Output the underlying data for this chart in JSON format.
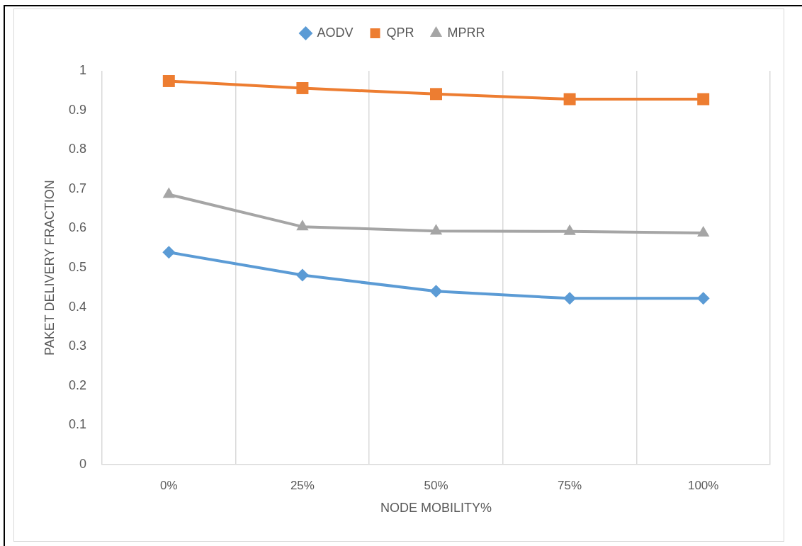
{
  "chart_data": {
    "type": "line",
    "xlabel": "NODE MOBILITY%",
    "ylabel": "PAKET DELIVERY FRACTION",
    "categories": [
      "0%",
      "25%",
      "50%",
      "75%",
      "100%"
    ],
    "series": [
      {
        "name": "AODV",
        "color": "#5b9bd5",
        "marker": "diamond",
        "values": [
          0.539,
          0.481,
          0.44,
          0.422,
          0.422
        ]
      },
      {
        "name": "QPR",
        "color": "#ed7d31",
        "marker": "square",
        "values": [
          0.974,
          0.956,
          0.941,
          0.928,
          0.928
        ]
      },
      {
        "name": "MPRR",
        "color": "#a5a5a5",
        "marker": "triangle",
        "values": [
          0.686,
          0.604,
          0.593,
          0.592,
          0.588
        ]
      }
    ],
    "ylim": [
      0,
      1
    ],
    "yticks": [
      0,
      0.1,
      0.2,
      0.3,
      0.4,
      0.5,
      0.6,
      0.7,
      0.8,
      0.9,
      1
    ],
    "grid": "x",
    "legend": "top"
  }
}
